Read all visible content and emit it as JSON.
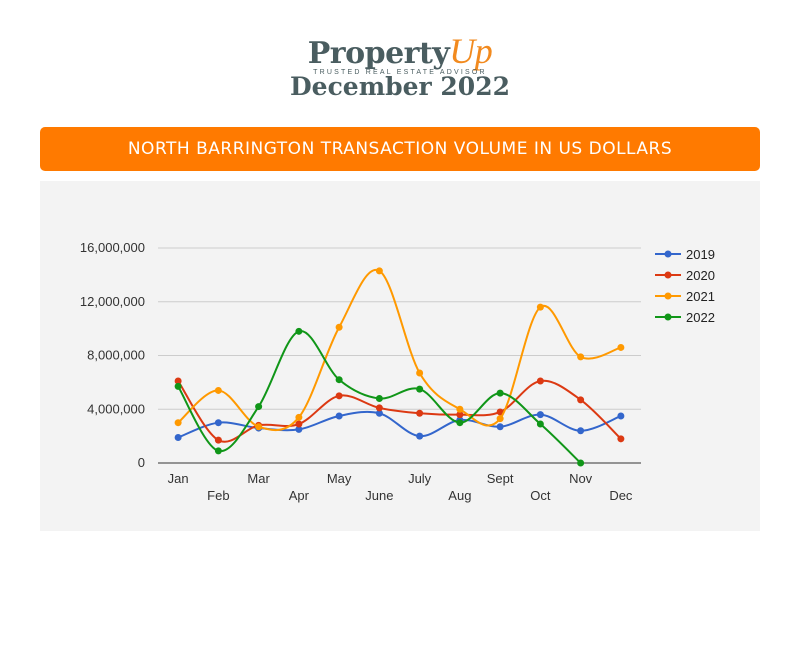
{
  "header": {
    "brand_main": "Property",
    "brand_accent": "Up",
    "tagline": "TRUSTED REAL ESTATE ADVISOR",
    "date_title": "December 2022"
  },
  "banner": {
    "title": "NORTH BARRINGTON TRANSACTION VOLUME IN US DOLLARS"
  },
  "colors": {
    "banner": "#ff7a00",
    "brand": "#4a5d60",
    "accent": "#f28a1e"
  },
  "chart_data": {
    "type": "line",
    "title": "",
    "xlabel": "",
    "ylabel": "",
    "categories": [
      "Jan",
      "Feb",
      "Mar",
      "Apr",
      "May",
      "June",
      "July",
      "Aug",
      "Sept",
      "Oct",
      "Nov",
      "Dec"
    ],
    "ylim": [
      0,
      16000000
    ],
    "yticks": [
      0,
      4000000,
      8000000,
      12000000,
      16000000
    ],
    "ytick_labels": [
      "0",
      "4,000,000",
      "8,000,000",
      "12,000,000",
      "16,000,000"
    ],
    "grid": true,
    "legend_position": "right",
    "smooth": true,
    "series": [
      {
        "name": "2019",
        "color": "#3366cc",
        "values": [
          1900000,
          3000000,
          2600000,
          2500000,
          3500000,
          3700000,
          2000000,
          3200000,
          2700000,
          3600000,
          2400000,
          3500000
        ]
      },
      {
        "name": "2020",
        "color": "#dc3912",
        "values": [
          6100000,
          1700000,
          2800000,
          2900000,
          5000000,
          4100000,
          3700000,
          3600000,
          3800000,
          6100000,
          4700000,
          1800000
        ]
      },
      {
        "name": "2021",
        "color": "#ff9900",
        "values": [
          3000000,
          5400000,
          2700000,
          3400000,
          10100000,
          14300000,
          6700000,
          4000000,
          3300000,
          11600000,
          7900000,
          8600000
        ]
      },
      {
        "name": "2022",
        "color": "#109618",
        "values": [
          5700000,
          900000,
          4200000,
          9800000,
          6200000,
          4800000,
          5500000,
          3000000,
          5200000,
          2900000,
          0,
          null
        ]
      }
    ]
  }
}
